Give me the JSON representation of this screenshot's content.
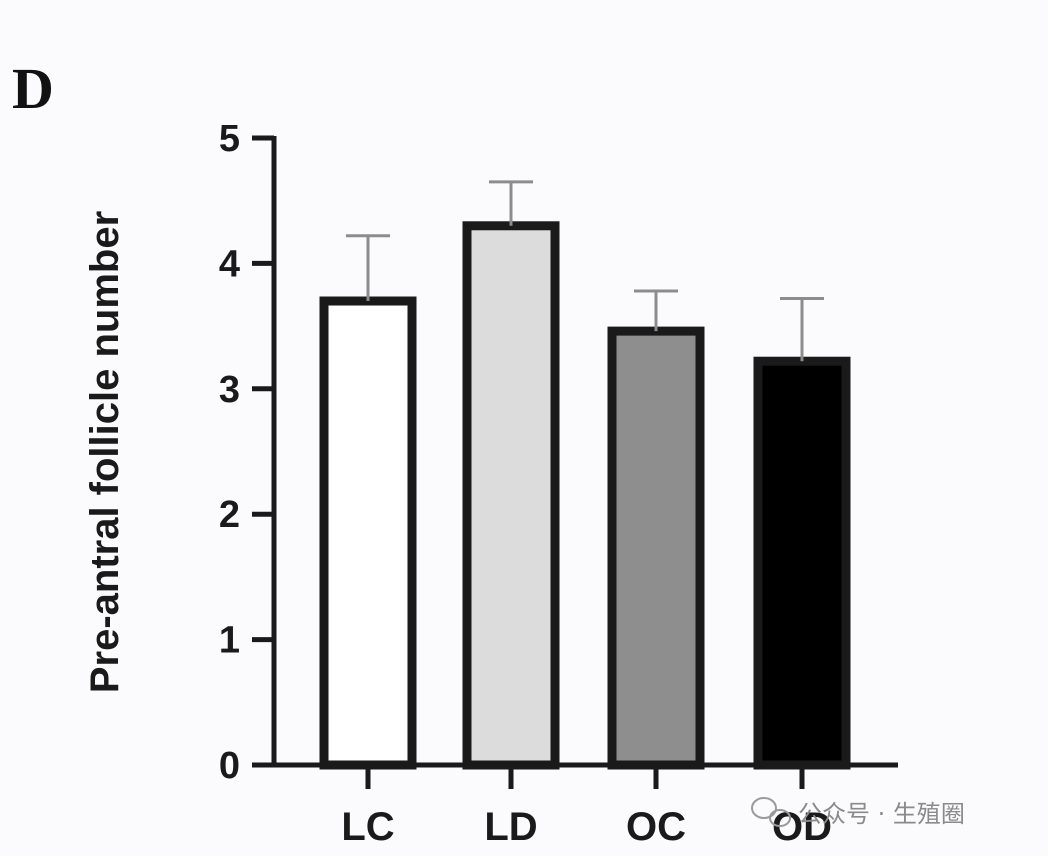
{
  "panel_label": "D",
  "watermark": "公众号 · 生殖圈",
  "colors": {
    "axis": "#1a1a1a",
    "bar_outline": "#1a1a1a",
    "error_bar": "#8c8c8c",
    "fills": [
      "#ffffff",
      "#dcdcdc",
      "#8e8e8e",
      "#000000"
    ]
  },
  "chart_data": {
    "type": "bar",
    "title": "",
    "xlabel": "",
    "ylabel": "Pre-antral follicle number",
    "categories": [
      "LC",
      "LD",
      "OC",
      "OD"
    ],
    "values": [
      3.7,
      4.3,
      3.46,
      3.22
    ],
    "errors": [
      0.52,
      0.35,
      0.32,
      0.5
    ],
    "ylim": [
      0,
      5
    ],
    "yticks": [
      "0",
      "1",
      "2",
      "3",
      "4",
      "5"
    ],
    "grid": false,
    "legend": "none"
  }
}
